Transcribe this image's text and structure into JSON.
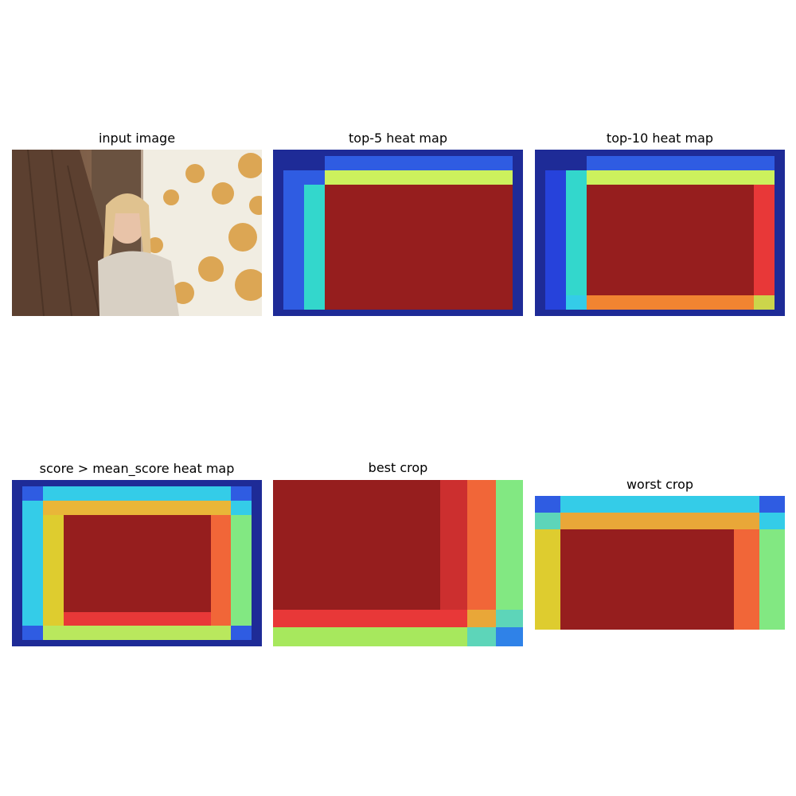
{
  "panels": [
    {
      "title": "input image",
      "kind": "photo"
    },
    {
      "title": "top-5 heat map",
      "kind": "heatmap"
    },
    {
      "title": "top-10 heat map",
      "kind": "heatmap"
    },
    {
      "title": "score > mean_score heat map",
      "kind": "heatmap"
    },
    {
      "title": "best crop",
      "kind": "crop"
    },
    {
      "title": "worst crop",
      "kind": "crop"
    }
  ],
  "colors": {
    "dark_blue": "#0a148c",
    "blue": "#1e46e6",
    "cyan": "#23d2e6",
    "teal": "#20d0c0",
    "green": "#78e678",
    "yellow_green": "#c8f050",
    "yellow": "#dcc81e",
    "orange": "#f0a028",
    "red_orange": "#f05a28",
    "red": "#e62828",
    "dark_red": "#8c0a0a"
  }
}
